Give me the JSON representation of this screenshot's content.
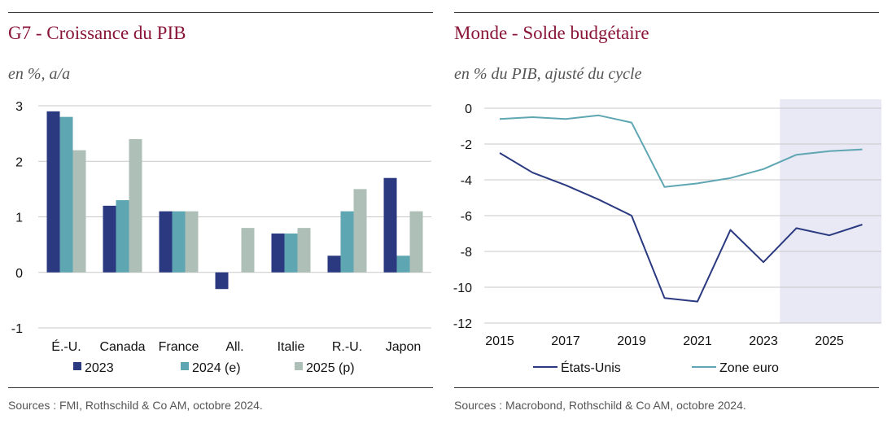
{
  "panels": [
    {
      "title": "G7 - Croissance du PIB",
      "subtitle": "en %, a/a",
      "source": "Sources : FMI, Rothschild & Co AM, octobre 2024."
    },
    {
      "title": "Monde - Solde budgétaire",
      "subtitle": "en % du PIB, ajusté du cycle",
      "source": "Sources : Macrobond, Rothschild & Co AM, octobre 2024."
    }
  ],
  "chart_data": [
    {
      "type": "bar",
      "title": "G7 - Croissance du PIB",
      "subtitle": "en %, a/a",
      "categories": [
        "É.-U.",
        "Canada",
        "France",
        "All.",
        "Italie",
        "R.-U.",
        "Japon"
      ],
      "series": [
        {
          "name": "2023",
          "color": "#2b3a80",
          "values": [
            2.9,
            1.2,
            1.1,
            -0.3,
            0.7,
            0.3,
            1.7
          ]
        },
        {
          "name": "2024 (e)",
          "color": "#5fa6b3",
          "values": [
            2.8,
            1.3,
            1.1,
            0.0,
            0.7,
            1.1,
            0.3
          ]
        },
        {
          "name": "2025 (p)",
          "color": "#aebfb8",
          "values": [
            2.2,
            2.4,
            1.1,
            0.8,
            0.8,
            1.5,
            1.1
          ]
        }
      ],
      "ylim": [
        -1,
        3
      ],
      "yticks": [
        3,
        2,
        1,
        0,
        -1
      ],
      "grid": true,
      "legend": "bottom"
    },
    {
      "type": "line",
      "title": "Monde - Solde budgétaire",
      "subtitle": "en % du PIB, ajusté du cycle",
      "x": [
        2015,
        2016,
        2017,
        2018,
        2019,
        2020,
        2021,
        2022,
        2023,
        2024,
        2025,
        2026
      ],
      "series": [
        {
          "name": "États-Unis",
          "color": "#2b3a80",
          "values": [
            -2.5,
            -3.6,
            -4.3,
            -5.1,
            -6.0,
            -10.6,
            -10.8,
            -6.8,
            -8.6,
            -6.7,
            -7.1,
            -6.5
          ]
        },
        {
          "name": "Zone euro",
          "color": "#5fa6b3",
          "values": [
            -0.6,
            -0.5,
            -0.6,
            -0.4,
            -0.8,
            -4.4,
            -4.2,
            -3.9,
            -3.4,
            -2.6,
            -2.4,
            -2.3
          ]
        }
      ],
      "xticks": [
        2015,
        2017,
        2019,
        2021,
        2023,
        2025
      ],
      "yticks": [
        0,
        -2,
        -4,
        -6,
        -8,
        -10,
        -12
      ],
      "ylim": [
        -12,
        0.5
      ],
      "xlim": [
        2014.5,
        2027.7
      ],
      "forecast_shading_from": 2023.5,
      "forecast_color": "#e8e9f5",
      "grid": true,
      "legend": "bottom"
    }
  ]
}
